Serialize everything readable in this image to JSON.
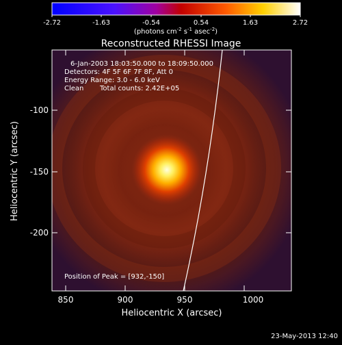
{
  "colorbar": {
    "ticks": [
      "-2.72",
      "-1.63",
      "-0.54",
      "0.54",
      "1.63",
      "2.72"
    ],
    "units": "(photons cm",
    "units_exp1": "-2",
    "units_mid": " s",
    "units_exp2": "-1",
    "units_end": " asec",
    "units_exp3": "-2",
    "units_close": ")"
  },
  "plot": {
    "title": "Reconstructed RHESSI Image",
    "info_line1": "6-Jan-2003 18:03:50.000 to 18:09:50.000",
    "info_line2": "Detectors: 4F 5F 6F 7F 8F, Att 0",
    "info_line3": "Energy Range: 3.0 - 6.0 keV",
    "info_line4_left": "Clean",
    "info_line4_right": "Total counts: 2.42E+05",
    "peak_text": "Position of Peak = [932,-150]",
    "xlabel": "Heliocentric X (arcsec)",
    "ylabel": "Heliocentric Y (arcsec)",
    "x_ticks": [
      "850",
      "900",
      "950",
      "1000"
    ],
    "y_ticks": [
      "-100",
      "-150",
      "-200"
    ]
  },
  "footer": {
    "timestamp": "23-May-2013 12:40"
  }
}
